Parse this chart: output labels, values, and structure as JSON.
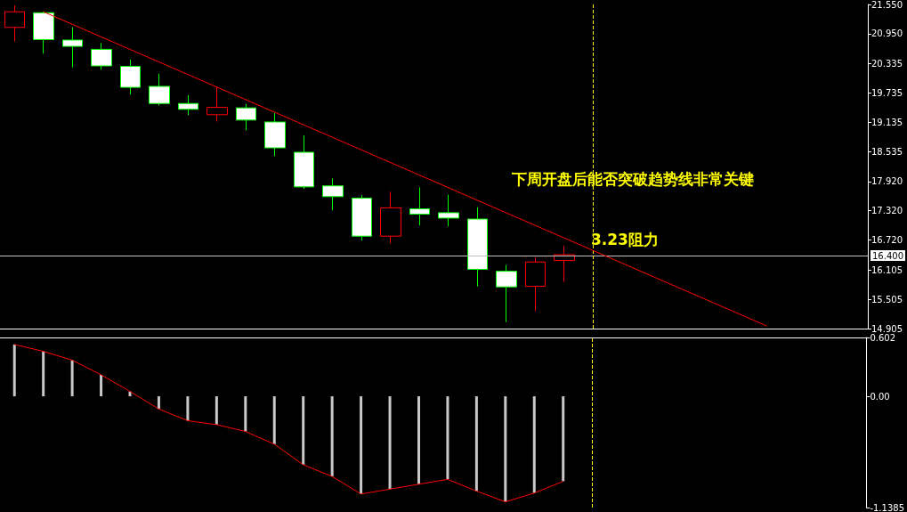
{
  "chart_data": [
    {
      "type": "candlestick",
      "tick_labels": "y",
      "categories": [
        null,
        null,
        null,
        null,
        null,
        null,
        null,
        null,
        null,
        null,
        null,
        null,
        null,
        null,
        null,
        null,
        null,
        null,
        null,
        null,
        null,
        null,
        null,
        null,
        null,
        null,
        null,
        null,
        null,
        null
      ],
      "ohlc": [
        [
          21.08,
          21.53,
          20.79,
          21.4
        ],
        [
          21.38,
          21.4,
          20.54,
          20.83
        ],
        [
          20.82,
          21.08,
          20.26,
          20.69
        ],
        [
          20.63,
          20.76,
          20.21,
          20.29
        ],
        [
          20.28,
          20.42,
          19.7,
          19.85
        ],
        [
          19.87,
          20.13,
          19.48,
          19.52
        ],
        [
          19.52,
          19.69,
          19.28,
          19.4
        ],
        [
          19.29,
          19.86,
          19.15,
          19.44
        ],
        [
          19.43,
          19.51,
          18.97,
          19.18
        ],
        [
          19.14,
          19.32,
          18.44,
          18.61
        ],
        [
          18.52,
          18.87,
          17.77,
          17.81
        ],
        [
          17.83,
          17.98,
          17.33,
          17.61
        ],
        [
          17.58,
          17.64,
          16.71,
          16.8
        ],
        [
          16.8,
          17.71,
          16.65,
          17.38
        ],
        [
          17.36,
          17.8,
          17.02,
          17.25
        ],
        [
          17.28,
          17.65,
          17.0,
          17.17
        ],
        [
          17.15,
          17.39,
          15.77,
          16.12
        ],
        [
          16.08,
          16.21,
          15.04,
          15.76
        ],
        [
          15.77,
          16.37,
          15.26,
          16.27
        ],
        [
          16.3,
          16.6,
          15.86,
          16.42
        ],
        null,
        null,
        null,
        null,
        null,
        null,
        null,
        null,
        null,
        null
      ],
      "series": [
        {
          "type": "line",
          "color": "#ff0000",
          "values": [
            null,
            21.4,
            null,
            null,
            null,
            null,
            null,
            null,
            null,
            null,
            null,
            null,
            null,
            null,
            null,
            null,
            null,
            null,
            null,
            null,
            null,
            null,
            null,
            null,
            null,
            null,
            14.96,
            null,
            null,
            null
          ]
        }
      ],
      "ylim": [
        14.905,
        21.55
      ],
      "yticks": [
        {
          "value": 21.55,
          "label": "21.550"
        },
        {
          "value": 20.95,
          "label": "20.950"
        },
        20.335,
        19.735,
        19.135,
        18.535,
        {
          "value": 17.92,
          "label": "17.920"
        },
        {
          "value": 17.32,
          "label": "17.320"
        },
        {
          "value": 16.72,
          "label": "16.720"
        },
        16.105,
        15.505,
        14.905
      ],
      "ref_lines": [
        {
          "axis": "y",
          "value": 16.4,
          "label": "16.400",
          "color": "#c0c0c0"
        }
      ],
      "annotations": [
        "下周开盘后能否突破趋势线非常关键",
        "3.23阻力"
      ]
    },
    {
      "type": "bar",
      "tick_labels": "y",
      "categories": [
        null,
        null,
        null,
        null,
        null,
        null,
        null,
        null,
        null,
        null,
        null,
        null,
        null,
        null,
        null,
        null,
        null,
        null,
        null,
        null,
        null,
        null,
        null,
        null,
        null,
        null,
        null,
        null,
        null,
        null
      ],
      "series": [
        {
          "color": "#c8c8c8",
          "values": [
            0.53,
            0.46,
            0.37,
            0.22,
            0.05,
            -0.13,
            -0.25,
            -0.29,
            -0.36,
            -0.49,
            -0.7,
            -0.82,
            -1.0,
            -0.95,
            -0.9,
            -0.85,
            -0.97,
            -1.08,
            -0.99,
            -0.87,
            null,
            null,
            null,
            null,
            null,
            null,
            null,
            null,
            null,
            null
          ]
        },
        {
          "type": "line",
          "color": "#ff0000",
          "values": [
            0.53,
            0.46,
            0.37,
            0.22,
            0.05,
            -0.13,
            -0.25,
            -0.29,
            -0.36,
            -0.49,
            -0.7,
            -0.82,
            -1.0,
            -0.95,
            -0.9,
            -0.85,
            -0.97,
            -1.08,
            -0.99,
            -0.87,
            null,
            null,
            null,
            null,
            null,
            null,
            null,
            null,
            null,
            null
          ]
        }
      ],
      "ylim": [
        -1.1385,
        0.602
      ],
      "yticks": [
        0.602,
        {
          "value": 0,
          "label": "0.00"
        },
        -1.1385
      ]
    }
  ]
}
